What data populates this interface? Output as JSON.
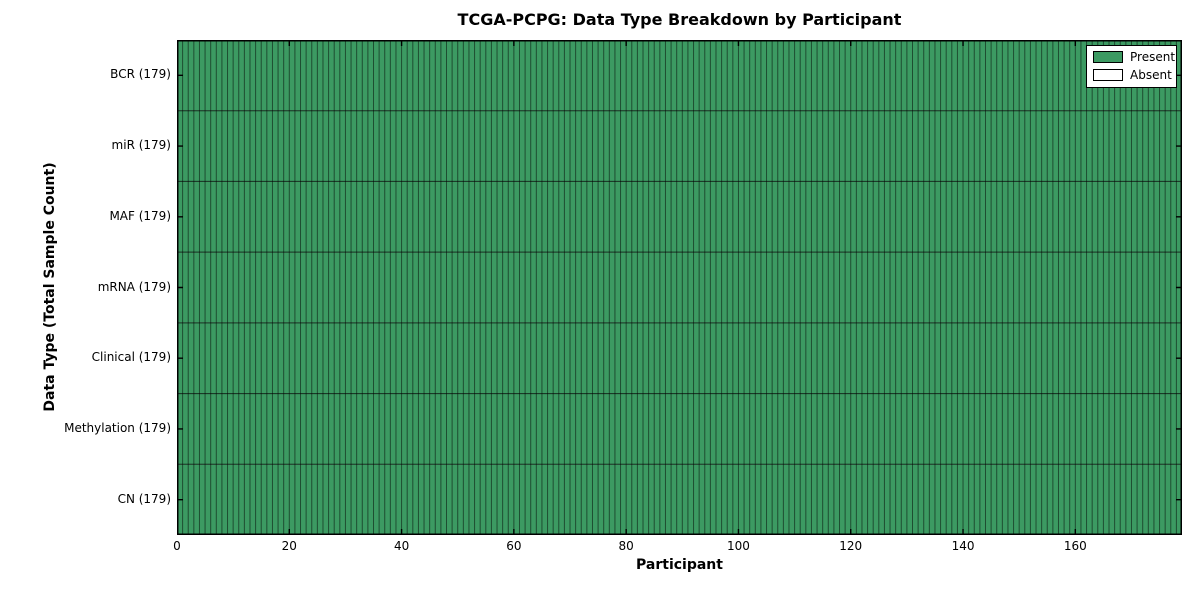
{
  "chart_data": {
    "type": "heatmap",
    "title": "TCGA-PCPG: Data Type Breakdown by Participant",
    "xlabel": "Participant",
    "ylabel": "Data Type (Total Sample Count)",
    "n_participants": 179,
    "xlim": [
      0,
      179
    ],
    "x_ticks": [
      0,
      20,
      40,
      60,
      80,
      100,
      120,
      140,
      160
    ],
    "rows": [
      {
        "label": "BCR (179)",
        "data_type": "BCR",
        "total_samples": 179,
        "present": 179,
        "absent": 0
      },
      {
        "label": "miR (179)",
        "data_type": "miR",
        "total_samples": 179,
        "present": 179,
        "absent": 0
      },
      {
        "label": "MAF (179)",
        "data_type": "MAF",
        "total_samples": 179,
        "present": 179,
        "absent": 0
      },
      {
        "label": "mRNA (179)",
        "data_type": "mRNA",
        "total_samples": 179,
        "present": 179,
        "absent": 0
      },
      {
        "label": "Clinical (179)",
        "data_type": "Clinical",
        "total_samples": 179,
        "present": 179,
        "absent": 0
      },
      {
        "label": "Methylation (179)",
        "data_type": "Methylation",
        "total_samples": 179,
        "present": 179,
        "absent": 0
      },
      {
        "label": "CN (179)",
        "data_type": "CN",
        "total_samples": 179,
        "present": 179,
        "absent": 0
      }
    ],
    "legend": [
      {
        "label": "Present",
        "color": "#3c9a62"
      },
      {
        "label": "Absent",
        "color": "#ffffff"
      }
    ],
    "colors": {
      "present": "#3c9a62",
      "absent": "#ffffff",
      "cell_edge": "rgba(0,0,0,0.50)",
      "row_edge": "rgba(0,0,0,0.72)",
      "spine": "#000000",
      "background": "#ffffff"
    },
    "legend_position": "upper-right",
    "grid": false
  }
}
